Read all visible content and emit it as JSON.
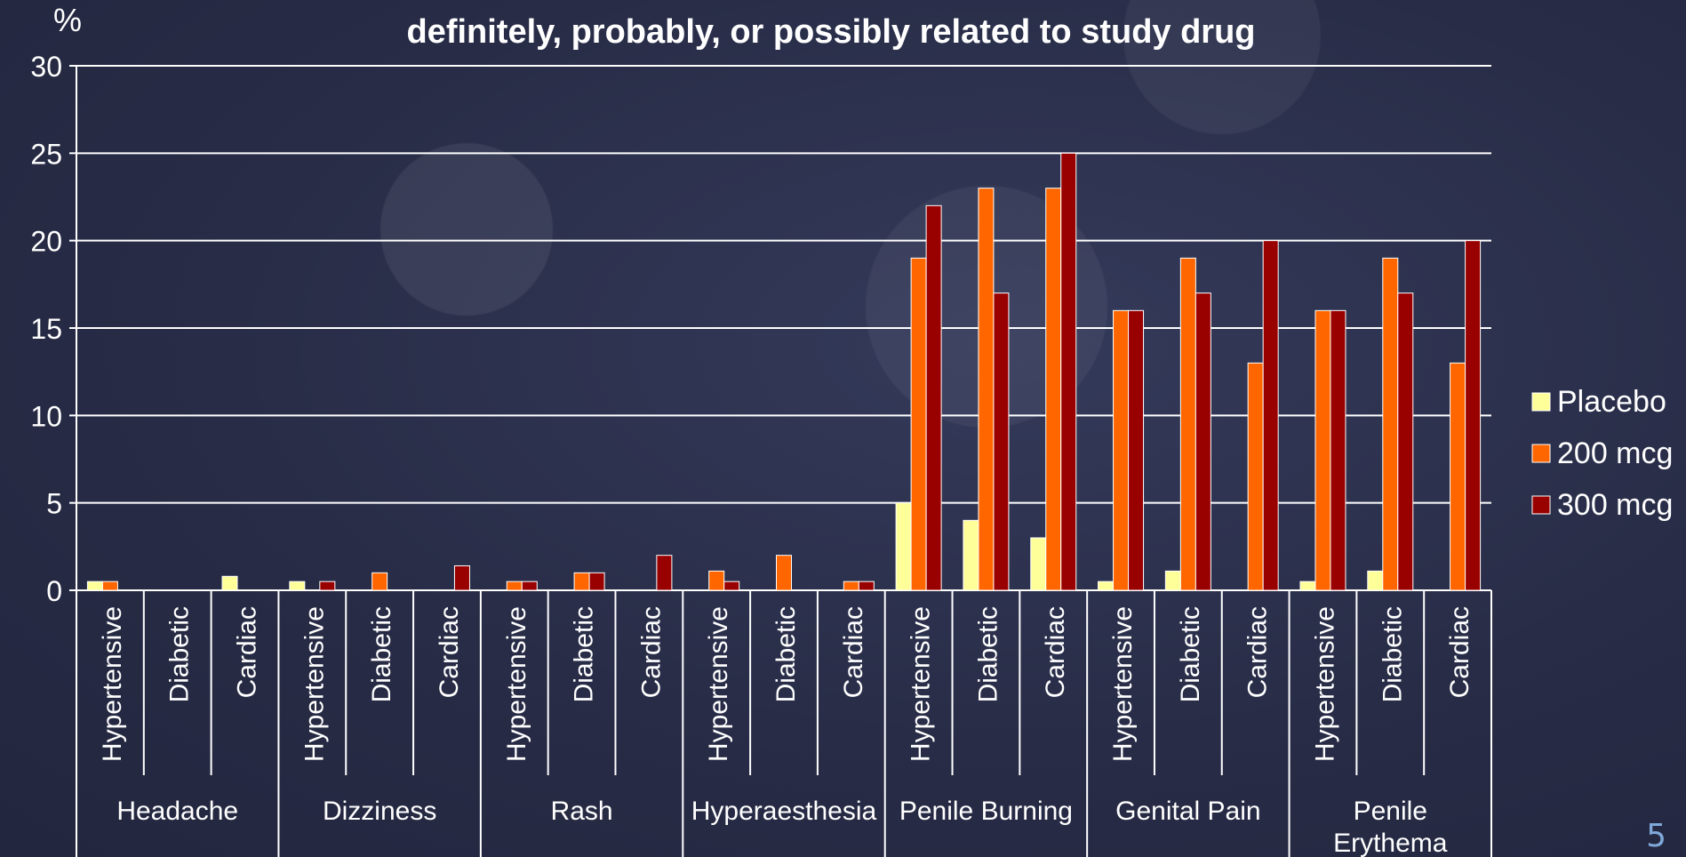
{
  "slide": {
    "page_number": "5"
  },
  "chart_data": {
    "type": "bar",
    "title_lines": [
      "",
      "definitely, probably, or possibly related to study drug"
    ],
    "ylabel": "%",
    "ylim": [
      0,
      30
    ],
    "yticks": [
      0,
      5,
      10,
      15,
      20,
      25,
      30
    ],
    "grid": true,
    "legend_position": "right",
    "groups": [
      {
        "label_lines": [
          "Headache"
        ],
        "subcategories": [
          "Hypertensive",
          "Diabetic",
          "Cardiac"
        ]
      },
      {
        "label_lines": [
          "Dizziness"
        ],
        "subcategories": [
          "Hypertensive",
          "Diabetic",
          "Cardiac"
        ]
      },
      {
        "label_lines": [
          "Rash"
        ],
        "subcategories": [
          "Hypertensive",
          "Diabetic",
          "Cardiac"
        ]
      },
      {
        "label_lines": [
          "Hyperaesthesia"
        ],
        "subcategories": [
          "Hypertensive",
          "Diabetic",
          "Cardiac"
        ]
      },
      {
        "label_lines": [
          "Penile Burning"
        ],
        "subcategories": [
          "Hypertensive",
          "Diabetic",
          "Cardiac"
        ]
      },
      {
        "label_lines": [
          "Genital Pain"
        ],
        "subcategories": [
          "Hypertensive",
          "Diabetic",
          "Cardiac"
        ]
      },
      {
        "label_lines": [
          "Penile",
          "Erythema"
        ],
        "subcategories": [
          "Hypertensive",
          "Diabetic",
          "Cardiac"
        ]
      }
    ],
    "series": [
      {
        "name": "Placebo",
        "color": "#ffff99",
        "values": [
          0.5,
          0,
          0.8,
          0.5,
          0,
          0,
          0,
          0,
          0,
          0,
          0,
          0,
          5,
          4,
          3,
          0.5,
          1.1,
          0,
          0.5,
          1.1,
          0
        ]
      },
      {
        "name": "200 mcg",
        "color": "#ff6600",
        "values": [
          0.5,
          0,
          0,
          0,
          1,
          0,
          0.5,
          1,
          0,
          1.1,
          2,
          0.5,
          19,
          23,
          23,
          16,
          19,
          13,
          16,
          19,
          13
        ]
      },
      {
        "name": "300 mcg",
        "color": "#990000",
        "values": [
          0,
          0,
          0,
          0.5,
          0,
          1.4,
          0.5,
          1,
          2,
          0.5,
          0,
          0.5,
          22,
          17,
          25,
          16,
          17,
          20,
          16,
          17,
          20
        ]
      }
    ]
  }
}
